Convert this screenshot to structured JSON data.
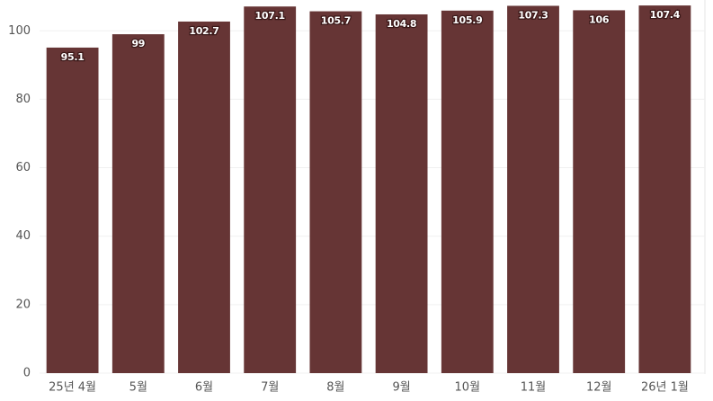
{
  "chart_data": {
    "type": "bar",
    "categories": [
      "25년 4월",
      "5월",
      "6월",
      "7월",
      "8월",
      "9월",
      "10월",
      "11월",
      "12월",
      "26년 1월"
    ],
    "values": [
      95.1,
      99,
      102.7,
      107.1,
      105.7,
      104.8,
      105.9,
      107.3,
      106,
      107.4
    ],
    "color": "#663535",
    "ylim": [
      0,
      109
    ],
    "yticks": [
      0,
      20,
      40,
      60,
      80,
      100
    ],
    "grid": true
  }
}
